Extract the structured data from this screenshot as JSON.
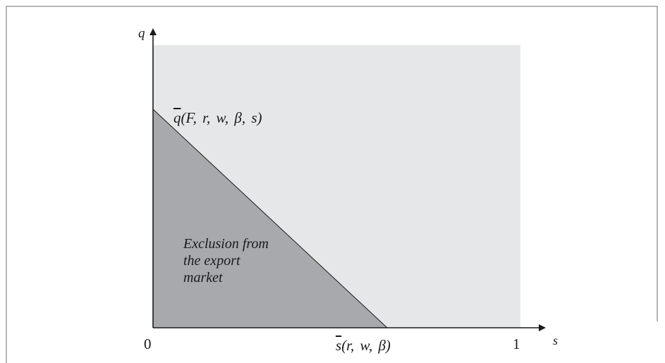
{
  "colors": {
    "light_region": "#e6e7e8",
    "dark_region": "#a7a9ac",
    "line": "#1a1a1a",
    "frame": "#6d6e71"
  },
  "axes": {
    "y_label": "q",
    "x_label": "s",
    "origin": "0",
    "x_max": "1"
  },
  "curve": {
    "name": "q",
    "args": "(F, r, w, β, s)"
  },
  "threshold": {
    "name": "s",
    "args": "(r, w, β)"
  },
  "region": {
    "lines": [
      "Exclusion from",
      "the export",
      "market"
    ]
  }
}
